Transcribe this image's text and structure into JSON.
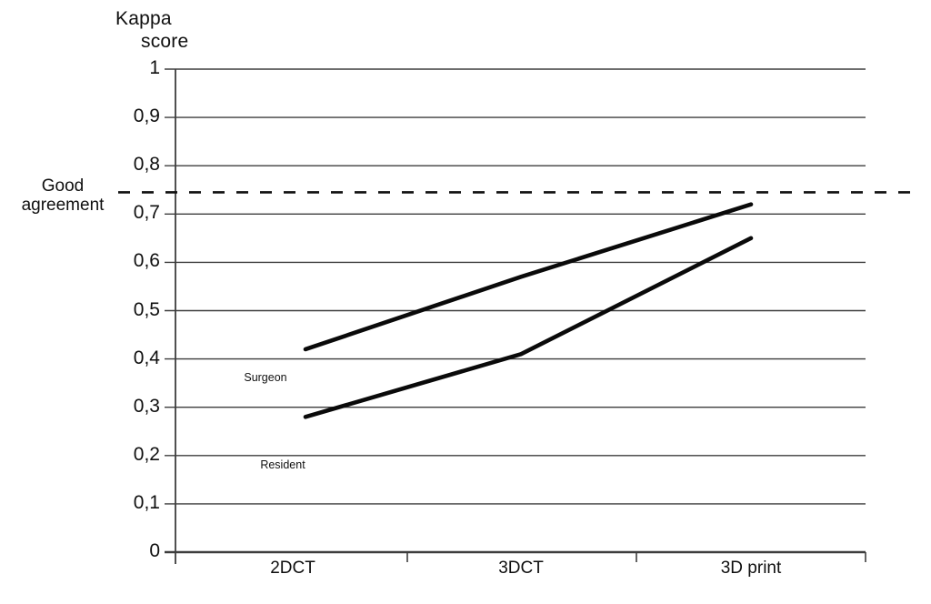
{
  "chart_data": {
    "type": "line",
    "title": "Kappa score",
    "title_lines": [
      "Kappa",
      "score"
    ],
    "categories": [
      "2DCT",
      "3DCT",
      "3D print"
    ],
    "series": [
      {
        "name": "Surgeon",
        "values": [
          0.42,
          0.57,
          0.72
        ]
      },
      {
        "name": "Resident",
        "values": [
          0.28,
          0.41,
          0.65
        ]
      }
    ],
    "threshold": {
      "value": 0.745,
      "label_lines": [
        "Good",
        "agreement"
      ],
      "style": "dashed"
    },
    "y_axis": {
      "label": "Kappa score",
      "min": 0,
      "max": 1,
      "step": 0.1,
      "tick_labels": [
        "0",
        "0,1",
        "0,2",
        "0,3",
        "0,4",
        "0,5",
        "0,6",
        "0,7",
        "0,8",
        "0,9",
        "1"
      ]
    },
    "grid": true,
    "legend_position": "inline-labels",
    "colors": {
      "line": "#0a0a0a",
      "grid": "#3d3d3d",
      "threshold": "#101010",
      "background": "#ffffff",
      "text": "#0f0f0f"
    }
  }
}
